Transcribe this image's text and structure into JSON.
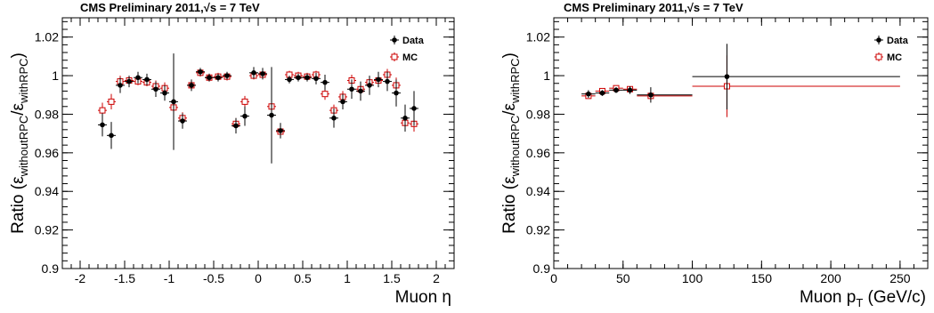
{
  "chart_data": [
    {
      "type": "scatter",
      "title": "CMS Preliminary 2011,",
      "title_energy": "√s = 7 TeV",
      "xlabel": "Muon η",
      "ylabel": "Ratio (ε",
      "ylabel_sub1": "withoutRPC",
      "ylabel_mid": "/ε",
      "ylabel_sub2": "withRPC",
      "ylabel_end": ")",
      "xlim": [
        -2.2,
        2.2
      ],
      "ylim": [
        0.9,
        1.03
      ],
      "xticks": [
        "-2",
        "-1.5",
        "-1",
        "-0.5",
        "0",
        "0.5",
        "1",
        "1.5",
        "2"
      ],
      "xtick_values": [
        -2,
        -1.5,
        -1,
        -0.5,
        0,
        0.5,
        1,
        1.5,
        2
      ],
      "yticks": [
        "0.9",
        "0.92",
        "0.94",
        "0.96",
        "0.98",
        "1",
        "1.02"
      ],
      "ytick_values": [
        0.9,
        0.92,
        0.94,
        0.96,
        0.98,
        1.0,
        1.02
      ],
      "legend": {
        "position": "top-right",
        "entries": [
          "Data",
          "MC"
        ]
      },
      "series": [
        {
          "name": "Data",
          "marker": "filled-circle",
          "color": "#000000",
          "x": [
            -1.75,
            -1.65,
            -1.55,
            -1.45,
            -1.35,
            -1.25,
            -1.15,
            -1.05,
            -0.95,
            -0.85,
            -0.75,
            -0.65,
            -0.55,
            -0.45,
            -0.35,
            -0.25,
            -0.15,
            -0.05,
            0.05,
            0.15,
            0.25,
            0.35,
            0.45,
            0.55,
            0.65,
            0.75,
            0.85,
            0.95,
            1.05,
            1.15,
            1.25,
            1.35,
            1.45,
            1.55,
            1.65,
            1.75
          ],
          "y": [
            0.9745,
            0.969,
            0.995,
            0.997,
            0.999,
            0.998,
            0.993,
            0.991,
            0.9865,
            0.9765,
            0.995,
            1.002,
            0.999,
            0.999,
            1.0,
            0.974,
            0.979,
            1.0015,
            1.001,
            0.9795,
            0.9715,
            0.998,
            0.999,
            0.999,
            0.9985,
            0.9965,
            0.978,
            0.9865,
            0.993,
            0.992,
            0.995,
            0.998,
            0.997,
            0.991,
            0.978,
            0.983
          ],
          "err": [
            0.006,
            0.007,
            0.004,
            0.003,
            0.003,
            0.003,
            0.004,
            0.004,
            0.025,
            0.004,
            0.003,
            0.002,
            0.002,
            0.002,
            0.002,
            0.004,
            0.005,
            0.003,
            0.003,
            0.025,
            0.004,
            0.002,
            0.002,
            0.002,
            0.003,
            0.004,
            0.005,
            0.004,
            0.005,
            0.005,
            0.005,
            0.004,
            0.005,
            0.007,
            0.007,
            0.009
          ]
        },
        {
          "name": "MC",
          "marker": "open-square",
          "color": "#cc0000",
          "x": [
            -1.75,
            -1.65,
            -1.55,
            -1.45,
            -1.35,
            -1.25,
            -1.15,
            -1.05,
            -0.95,
            -0.85,
            -0.75,
            -0.65,
            -0.55,
            -0.45,
            -0.35,
            -0.25,
            -0.15,
            -0.05,
            0.05,
            0.15,
            0.25,
            0.35,
            0.45,
            0.55,
            0.65,
            0.75,
            0.85,
            0.95,
            1.05,
            1.15,
            1.25,
            1.35,
            1.45,
            1.55,
            1.65,
            1.75
          ],
          "y": [
            0.982,
            0.9865,
            0.997,
            0.9975,
            0.997,
            0.9965,
            0.9945,
            0.9935,
            0.9835,
            0.978,
            0.995,
            1.0015,
            0.999,
            0.9995,
            0.9995,
            0.975,
            0.9865,
            1.0,
            1.0005,
            0.984,
            0.971,
            1.0005,
            1.0,
            0.9995,
            1.0005,
            0.9905,
            0.982,
            0.989,
            0.9975,
            0.993,
            0.9965,
            0.9975,
            1.0005,
            0.995,
            0.9755,
            0.975
          ],
          "err": [
            0.004,
            0.004,
            0.003,
            0.002,
            0.002,
            0.002,
            0.003,
            0.003,
            0.004,
            0.003,
            0.002,
            0.002,
            0.002,
            0.002,
            0.002,
            0.003,
            0.003,
            0.002,
            0.002,
            0.004,
            0.003,
            0.002,
            0.002,
            0.002,
            0.002,
            0.003,
            0.003,
            0.003,
            0.003,
            0.003,
            0.003,
            0.003,
            0.003,
            0.004,
            0.004,
            0.004
          ]
        }
      ]
    },
    {
      "type": "scatter",
      "title": "CMS Preliminary 2011,",
      "title_energy": "√s = 7 TeV",
      "xlabel": "Muon p",
      "xlabel_sub": "T",
      "xlabel_end": " (GeV/c)",
      "ylabel": "Ratio (ε",
      "ylabel_sub1": "withoutRPC",
      "ylabel_mid": "/ε",
      "ylabel_sub2": "withRPC",
      "ylabel_end": ")",
      "xlim": [
        0,
        270
      ],
      "ylim": [
        0.9,
        1.03
      ],
      "xticks": [
        "0",
        "50",
        "100",
        "150",
        "200",
        "250"
      ],
      "xtick_values": [
        0,
        50,
        100,
        150,
        200,
        250
      ],
      "yticks": [
        "0.9",
        "0.92",
        "0.94",
        "0.96",
        "0.98",
        "1",
        "1.02"
      ],
      "ytick_values": [
        0.9,
        0.92,
        0.94,
        0.96,
        0.98,
        1.0,
        1.02
      ],
      "legend": {
        "position": "top-right",
        "entries": [
          "Data",
          "MC"
        ]
      },
      "series": [
        {
          "name": "Data",
          "marker": "filled-circle",
          "color": "#000000",
          "x": [
            25,
            35,
            45,
            55,
            70,
            125
          ],
          "xlow": [
            20,
            30,
            40,
            50,
            60,
            100
          ],
          "xhigh": [
            30,
            40,
            50,
            60,
            100,
            250
          ],
          "y": [
            0.9905,
            0.991,
            0.9925,
            0.9925,
            0.99,
            0.9995
          ],
          "err": [
            0.002,
            0.0015,
            0.0015,
            0.002,
            0.004,
            0.017
          ]
        },
        {
          "name": "MC",
          "marker": "open-square",
          "color": "#cc0000",
          "x": [
            25,
            35,
            45,
            55,
            70,
            125
          ],
          "xlow": [
            20,
            30,
            40,
            50,
            60,
            100
          ],
          "xhigh": [
            30,
            40,
            50,
            60,
            100,
            250
          ],
          "y": [
            0.9895,
            0.992,
            0.9935,
            0.993,
            0.9895,
            0.9945
          ],
          "err": [
            0.0015,
            0.001,
            0.001,
            0.0015,
            0.002,
            0.016
          ]
        }
      ]
    }
  ]
}
